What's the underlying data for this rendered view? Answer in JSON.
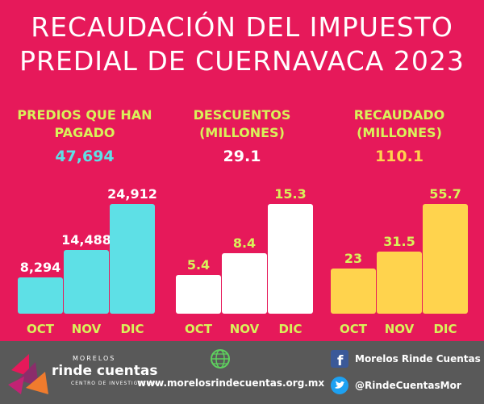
{
  "title_line1": "Recaudación del impuesto",
  "title_line2": "predial de Cuernavaca 2023",
  "colors": {
    "background": "#e6195a",
    "cyan": "#5ee0e6",
    "white": "#ffffff",
    "yellow": "#ffd34d",
    "green_label": "#d9f25a",
    "footer": "#595959"
  },
  "chart_data": [
    {
      "type": "bar",
      "title": "Predios que han pagado",
      "total": "47,694",
      "categories": [
        "OCT",
        "NOV",
        "DIC"
      ],
      "values": [
        8294,
        14488,
        24912
      ],
      "value_labels": [
        "8,294",
        "14,488",
        "24,912"
      ],
      "color": "#5ee0e6"
    },
    {
      "type": "bar",
      "title": "Descuentos (millones)",
      "total": "29.1",
      "categories": [
        "OCT",
        "NOV",
        "DIC"
      ],
      "values": [
        5.4,
        8.4,
        15.3
      ],
      "value_labels": [
        "5.4",
        "8.4",
        "15.3"
      ],
      "color": "#ffffff"
    },
    {
      "type": "bar",
      "title": "Recaudado (millones)",
      "total": "110.1",
      "categories": [
        "OCT",
        "NOV",
        "DIC"
      ],
      "values": [
        23,
        31.5,
        55.7
      ],
      "value_labels": [
        "23",
        "31.5",
        "55.7"
      ],
      "color": "#ffd34d"
    }
  ],
  "panels": [
    {
      "heading_line1": "Predios que han",
      "heading_line2": "pagado",
      "total": "47,694",
      "total_color": "#5ee0e6"
    },
    {
      "heading_line1": "Descuentos",
      "heading_line2": "(millones)",
      "total": "29.1",
      "total_color": "#ffffff"
    },
    {
      "heading_line1": "Recaudado",
      "heading_line2": "(millones)",
      "total": "110.1",
      "total_color": "#ffd34d"
    }
  ],
  "footer": {
    "brand_top": "MORELOS",
    "brand_main": "rinde cuentas",
    "brand_sub": "CENTRO DE INVESTIGACIÓN",
    "website": "www.morelosrindecuentas.org.mx",
    "facebook": "Morelos Rinde Cuentas",
    "twitter": "@RindeCuentasMor",
    "icons": [
      "globe-icon",
      "facebook-icon",
      "twitter-icon"
    ]
  }
}
